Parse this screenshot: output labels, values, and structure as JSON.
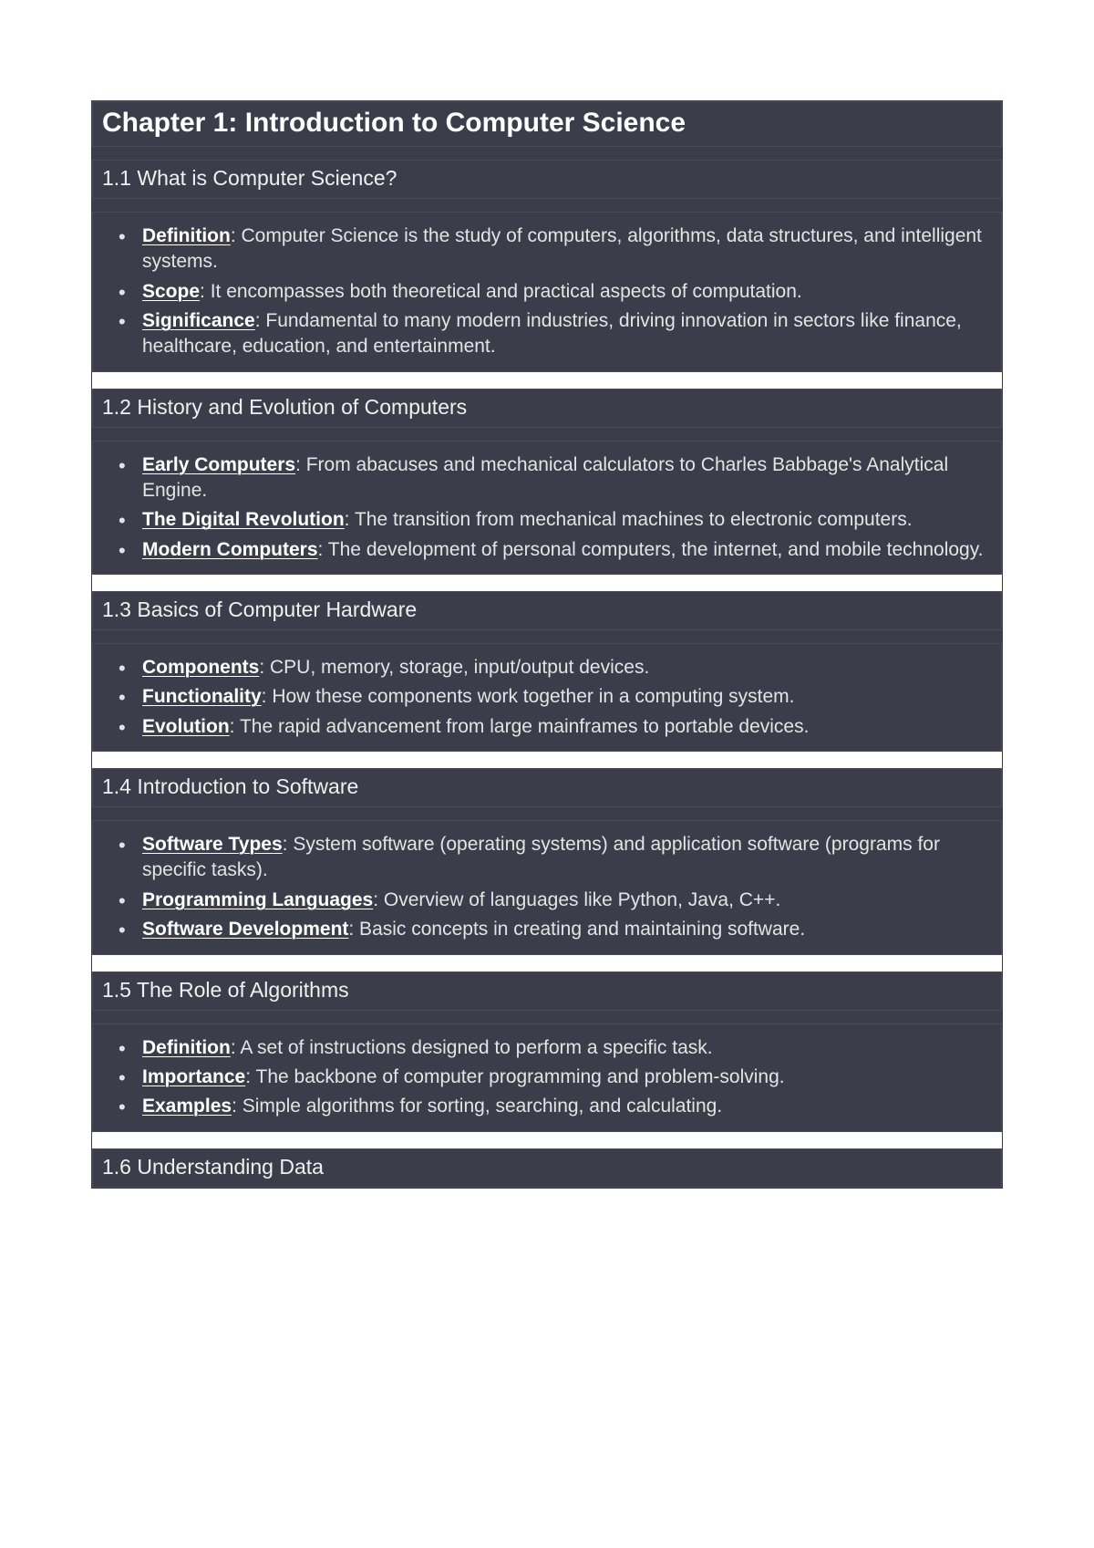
{
  "colors": {
    "page_bg": "#ffffff",
    "block_bg": "#3b3e4a",
    "block_border": "#4a4d59",
    "text": "#e4e4e4",
    "heading_text": "#ffffff"
  },
  "typography": {
    "h1_fontsize": 30,
    "h2_fontsize": 23,
    "body_fontsize": 21,
    "font_family": "Verdana"
  },
  "chapter": {
    "title": "Chapter 1: Introduction to Computer Science",
    "sections": [
      {
        "heading": "1.1 What is Computer Science?",
        "items": [
          {
            "term": "Definition",
            "text": ": Computer Science is the study of computers, algorithms, data structures, and intelligent systems."
          },
          {
            "term": "Scope",
            "text": ": It encompasses both theoretical and practical aspects of computation."
          },
          {
            "term": "Significance",
            "text": ": Fundamental to many modern industries, driving innovation in sectors like finance, healthcare, education, and entertainment."
          }
        ]
      },
      {
        "heading": "1.2 History and Evolution of Computers",
        "items": [
          {
            "term": "Early Computers",
            "text": ": From abacuses and mechanical calculators to Charles Babbage's Analytical Engine."
          },
          {
            "term": "The Digital Revolution",
            "text": ": The transition from mechanical machines to electronic computers."
          },
          {
            "term": "Modern Computers",
            "text": ": The development of personal computers, the internet, and mobile technology."
          }
        ]
      },
      {
        "heading": "1.3 Basics of Computer Hardware",
        "items": [
          {
            "term": "Components",
            "text": ": CPU, memory, storage, input/output devices."
          },
          {
            "term": "Functionality",
            "text": ": How these components work together in a computing system."
          },
          {
            "term": "Evolution",
            "text": ": The rapid advancement from large mainframes to portable devices."
          }
        ]
      },
      {
        "heading": "1.4 Introduction to Software",
        "items": [
          {
            "term": "Software Types",
            "text": ": System software (operating systems) and application software (programs for specific tasks)."
          },
          {
            "term": "Programming Languages",
            "text": ": Overview of languages like Python, Java, C++."
          },
          {
            "term": "Software Development",
            "text": ": Basic concepts in creating and maintaining software."
          }
        ]
      },
      {
        "heading": "1.5 The Role of Algorithms",
        "items": [
          {
            "term": "Definition",
            "text": ": A set of instructions designed to perform a specific task."
          },
          {
            "term": "Importance",
            "text": ": The backbone of computer programming and problem-solving."
          },
          {
            "term": "Examples",
            "text": ": Simple algorithms for sorting, searching, and calculating."
          }
        ]
      },
      {
        "heading": "1.6 Understanding Data",
        "items": []
      }
    ]
  }
}
